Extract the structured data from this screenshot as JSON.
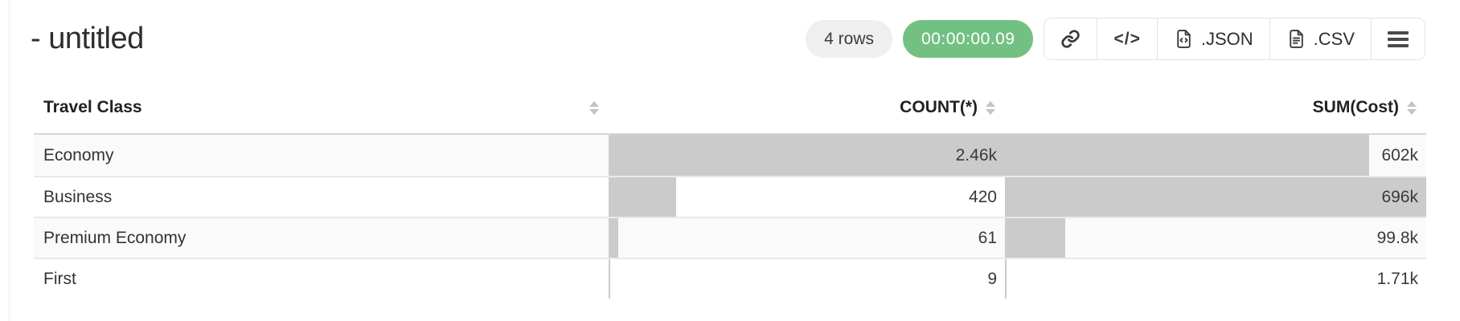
{
  "header": {
    "title": "- untitled",
    "rows_badge": "4 rows",
    "timer": "00:00:00.09"
  },
  "toolbar": {
    "code_glyph": "</>",
    "json_label": ".JSON",
    "csv_label": ".CSV"
  },
  "icons": {
    "link": "link-icon",
    "code": "code-icon",
    "json_file": "file-code-icon",
    "csv_file": "file-text-icon",
    "menu": "hamburger-menu-icon",
    "sort": "sort-arrows-icon"
  },
  "colors": {
    "timer-green": "#73c083",
    "badge-gray": "#efefef",
    "bar-gray": "#cbcbcb"
  },
  "table": {
    "columns": [
      {
        "label": "Travel Class",
        "align": "left",
        "sortable": true
      },
      {
        "label": "COUNT(*)",
        "align": "right",
        "sortable": true
      },
      {
        "label": "SUM(Cost)",
        "align": "right",
        "sortable": true
      }
    ],
    "rows": [
      {
        "travel_class": "Economy",
        "count": "2.46k",
        "sum": "602k",
        "count_bar_pct": 100,
        "sum_bar_pct": 86.5
      },
      {
        "travel_class": "Business",
        "count": "420",
        "sum": "696k",
        "count_bar_pct": 17.1,
        "sum_bar_pct": 100
      },
      {
        "travel_class": "Premium Economy",
        "count": "61",
        "sum": "99.8k",
        "count_bar_pct": 2.5,
        "sum_bar_pct": 14.3
      },
      {
        "travel_class": "First",
        "count": "9",
        "sum": "1.71k",
        "count_bar_pct": 0.4,
        "sum_bar_pct": 0.3
      }
    ]
  }
}
